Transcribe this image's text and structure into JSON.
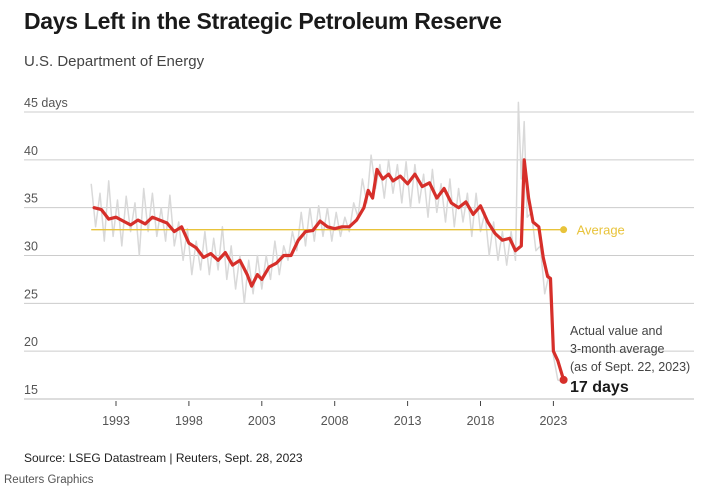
{
  "chart_data": {
    "type": "line",
    "title": "Days Left in the Strategic Petroleum Reserve",
    "subtitle": "U.S. Department of Energy",
    "ylabel_unit": "days",
    "ylim": [
      15,
      45
    ],
    "yticks": [
      15,
      20,
      25,
      30,
      35,
      40,
      45
    ],
    "ytick_labels": [
      "15",
      "20",
      "25",
      "30",
      "35",
      "40",
      "45 days"
    ],
    "xlim": [
      1988,
      2028
    ],
    "xticks": [
      1993,
      1998,
      2003,
      2008,
      2013,
      2018,
      2023
    ],
    "xtick_labels": [
      "1993",
      "1998",
      "2003",
      "2008",
      "2013",
      "2018",
      "2023"
    ],
    "grid": "horizontal",
    "colors": {
      "smoothed": "#d62f2a",
      "actual": "#d9d9d9",
      "average": "#e8c33a",
      "grid": "#cccccc"
    },
    "average": {
      "label": "Average",
      "value": 32.7
    },
    "series": [
      {
        "key": "actual",
        "x": [
          1991.3,
          1991.6,
          1991.9,
          1992.2,
          1992.5,
          1992.8,
          1993.1,
          1993.4,
          1993.7,
          1994.0,
          1994.3,
          1994.6,
          1994.9,
          1995.2,
          1995.5,
          1995.8,
          1996.1,
          1996.4,
          1996.7,
          1997.0,
          1997.3,
          1997.6,
          1997.9,
          1998.2,
          1998.5,
          1998.8,
          1999.1,
          1999.4,
          1999.7,
          2000.0,
          2000.3,
          2000.6,
          2000.9,
          2001.2,
          2001.5,
          2001.8,
          2002.1,
          2002.4,
          2002.7,
          2003.0,
          2003.3,
          2003.6,
          2003.9,
          2004.2,
          2004.5,
          2004.8,
          2005.1,
          2005.4,
          2005.7,
          2006.0,
          2006.3,
          2006.6,
          2006.9,
          2007.2,
          2007.5,
          2007.8,
          2008.1,
          2008.4,
          2008.7,
          2009.0,
          2009.3,
          2009.6,
          2009.9,
          2010.2,
          2010.5,
          2010.8,
          2011.1,
          2011.4,
          2011.7,
          2012.0,
          2012.3,
          2012.6,
          2012.9,
          2013.2,
          2013.5,
          2013.8,
          2014.1,
          2014.4,
          2014.7,
          2015.0,
          2015.3,
          2015.6,
          2015.9,
          2016.2,
          2016.5,
          2016.8,
          2017.1,
          2017.4,
          2017.7,
          2018.0,
          2018.3,
          2018.6,
          2018.9,
          2019.2,
          2019.5,
          2019.8,
          2020.1,
          2020.4,
          2020.6,
          2020.8,
          2021.0,
          2021.2,
          2021.5,
          2021.8,
          2022.1,
          2022.4,
          2022.7,
          2023.0,
          2023.3,
          2023.6
        ],
        "values": [
          37.5,
          33.0,
          36.5,
          31.5,
          37.8,
          32.0,
          35.8,
          31.0,
          36.2,
          32.5,
          35.5,
          30.0,
          37.0,
          32.5,
          36.5,
          32.0,
          35.0,
          31.5,
          36.3,
          31.0,
          33.5,
          29.5,
          32.8,
          28.0,
          31.5,
          28.5,
          32.5,
          28.0,
          31.8,
          28.5,
          33.0,
          27.5,
          31.0,
          26.5,
          30.0,
          25.0,
          29.5,
          26.0,
          30.0,
          26.5,
          30.0,
          27.5,
          31.5,
          28.0,
          31.0,
          29.5,
          32.5,
          30.5,
          34.5,
          31.0,
          35.0,
          31.5,
          35.2,
          32.0,
          35.0,
          31.5,
          34.5,
          32.0,
          34.0,
          32.5,
          35.5,
          34.0,
          38.0,
          35.5,
          40.5,
          37.0,
          39.5,
          36.0,
          40.0,
          36.5,
          39.5,
          35.5,
          39.8,
          35.0,
          39.5,
          35.5,
          38.5,
          34.0,
          39.0,
          34.5,
          37.5,
          33.5,
          38.0,
          33.0,
          37.0,
          33.5,
          36.5,
          32.0,
          36.5,
          32.5,
          34.5,
          30.0,
          33.5,
          29.5,
          32.5,
          29.0,
          32.5,
          29.5,
          46.0,
          38.0,
          44.0,
          34.0,
          34.5,
          30.5,
          31.0,
          26.0,
          28.0,
          19.5,
          17.0,
          16.8
        ]
      },
      {
        "key": "smoothed",
        "x": [
          1991.5,
          1992,
          1992.5,
          1993,
          1993.5,
          1994,
          1994.5,
          1995,
          1995.5,
          1996,
          1996.5,
          1997,
          1997.5,
          1998,
          1998.5,
          1999,
          1999.5,
          2000,
          2000.5,
          2001,
          2001.5,
          2002,
          2002.3,
          2002.7,
          2003,
          2003.5,
          2004,
          2004.5,
          2005,
          2005.5,
          2006,
          2006.5,
          2007,
          2007.5,
          2008,
          2008.5,
          2009,
          2009.5,
          2010,
          2010.3,
          2010.6,
          2010.9,
          2011.3,
          2011.7,
          2012,
          2012.5,
          2013,
          2013.5,
          2014,
          2014.5,
          2015,
          2015.5,
          2016,
          2016.5,
          2017,
          2017.5,
          2018,
          2018.5,
          2019,
          2019.5,
          2020,
          2020.4,
          2020.8,
          2021,
          2021.3,
          2021.6,
          2022,
          2022.3,
          2022.6,
          2022.8,
          2023,
          2023.3,
          2023.7
        ],
        "values": [
          35.0,
          34.8,
          33.8,
          34.0,
          33.6,
          33.2,
          33.7,
          33.3,
          34.0,
          33.7,
          33.4,
          32.5,
          33.0,
          31.3,
          30.8,
          29.8,
          30.2,
          29.5,
          30.3,
          29.0,
          29.5,
          28.0,
          26.8,
          28.0,
          27.5,
          28.8,
          29.2,
          30.0,
          30.0,
          31.6,
          32.5,
          32.6,
          33.6,
          33.0,
          32.8,
          33.0,
          33.0,
          33.7,
          35.0,
          36.8,
          36.0,
          39.0,
          38.0,
          38.5,
          37.8,
          38.3,
          37.5,
          38.5,
          37.2,
          37.6,
          36.0,
          37.0,
          35.5,
          35.0,
          35.6,
          34.3,
          35.2,
          33.5,
          32.3,
          31.6,
          31.8,
          30.5,
          31.0,
          40.0,
          36.0,
          33.5,
          33.0,
          29.8,
          27.8,
          27.6,
          20.0,
          19.0,
          17.0
        ]
      }
    ],
    "annotation": {
      "lines": [
        "Actual value and",
        "3-month average",
        "(as of Sept. 22, 2023)"
      ],
      "value_label": "17 days",
      "value": 17
    }
  },
  "footer": {
    "source": "Source: LSEG Datastream | Reuters, Sept. 28, 2023",
    "credit": "Reuters Graphics"
  }
}
